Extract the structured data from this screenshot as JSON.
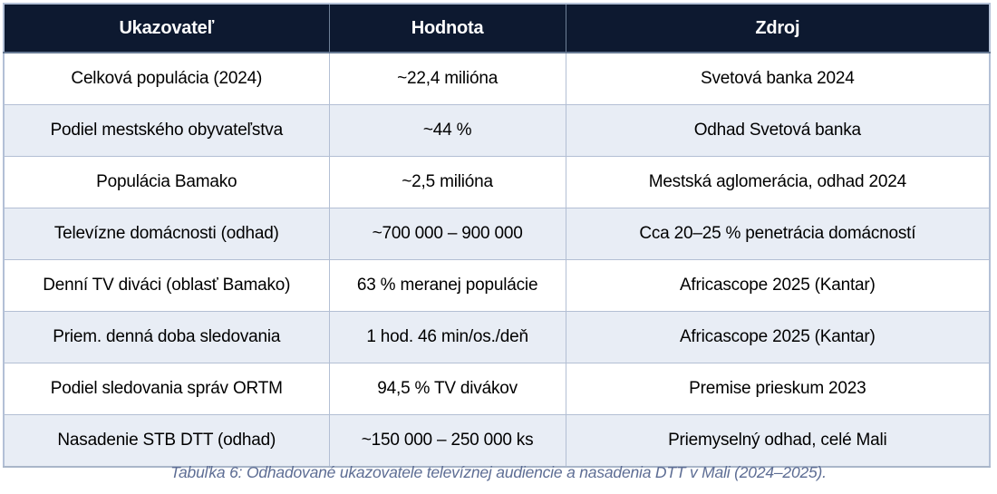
{
  "colors": {
    "header_bg": "#0d1930",
    "header_text": "#ffffff",
    "row_bg": "#ffffff",
    "row_alt_bg": "#e8edf5",
    "border": "#b3bfd4",
    "caption_text": "#5d6d94"
  },
  "table": {
    "headers": [
      "Ukazovateľ",
      "Hodnota",
      "Zdroj"
    ],
    "rows": [
      [
        "Celková populácia (2024)",
        "~22,4 milióna",
        "Svetová banka 2024"
      ],
      [
        "Podiel mestského obyvateľstva",
        "~44 %",
        "Odhad Svetová banka"
      ],
      [
        "Populácia Bamako",
        "~2,5 milióna",
        "Mestská aglomerácia, odhad 2024"
      ],
      [
        "Televízne domácnosti (odhad)",
        "~700 000 – 900 000",
        "Cca 20–25 % penetrácia domácností"
      ],
      [
        "Denní TV diváci (oblasť Bamako)",
        "63 % meranej populácie",
        "Africascope 2025 (Kantar)"
      ],
      [
        "Priem. denná doba sledovania",
        "1 hod. 46 min/os./deň",
        "Africascope 2025 (Kantar)"
      ],
      [
        "Podiel sledovania správ ORTM",
        "94,5 % TV divákov",
        "Premise prieskum 2023"
      ],
      [
        "Nasadenie STB DTT (odhad)",
        "~150 000 – 250 000 ks",
        "Priemyselný odhad, celé Mali"
      ]
    ]
  },
  "caption": "Tabuľka 6: Odhadované ukazovatele televíznej audiencie a nasadenia DTT v Mali (2024–2025)."
}
